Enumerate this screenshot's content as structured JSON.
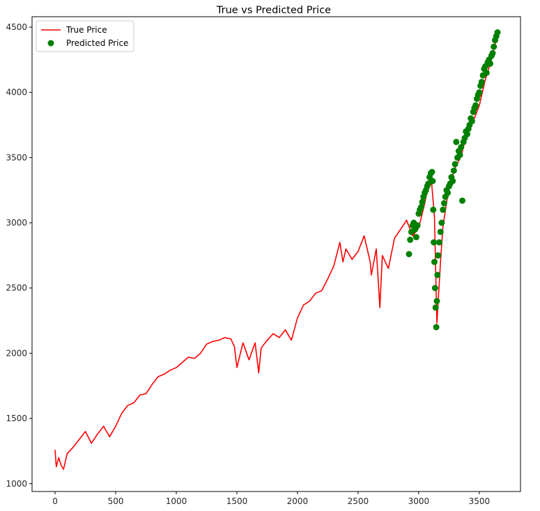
{
  "chart_data": {
    "type": "line",
    "title": "True vs Predicted Price",
    "xlabel": "",
    "ylabel": "",
    "xlim": [
      -190,
      3840
    ],
    "ylim": [
      940,
      4580
    ],
    "xticks": [
      0,
      500,
      1000,
      1500,
      2000,
      2500,
      3000,
      3500
    ],
    "yticks": [
      1000,
      1500,
      2000,
      2500,
      3000,
      3500,
      4000,
      4500
    ],
    "grid": false,
    "legend_position": "upper left",
    "series": [
      {
        "name": "True Price",
        "kind": "line",
        "color": "#ff0000",
        "x": [
          0,
          10,
          30,
          50,
          70,
          100,
          150,
          200,
          250,
          300,
          350,
          400,
          450,
          500,
          550,
          600,
          650,
          700,
          750,
          800,
          850,
          900,
          950,
          1000,
          1050,
          1100,
          1150,
          1200,
          1250,
          1300,
          1350,
          1400,
          1450,
          1480,
          1500,
          1550,
          1600,
          1650,
          1680,
          1700,
          1750,
          1800,
          1850,
          1900,
          1950,
          2000,
          2050,
          2100,
          2150,
          2200,
          2250,
          2300,
          2350,
          2375,
          2400,
          2450,
          2500,
          2550,
          2600,
          2610,
          2650,
          2680,
          2700,
          2750,
          2800,
          2850,
          2900,
          2950,
          3000,
          3050,
          3100,
          3130,
          3150,
          3180,
          3200,
          3250,
          3300,
          3350,
          3400,
          3450,
          3500,
          3550,
          3600,
          3650
        ],
        "y": [
          1260,
          1130,
          1200,
          1140,
          1110,
          1230,
          1280,
          1340,
          1400,
          1310,
          1380,
          1440,
          1360,
          1440,
          1540,
          1600,
          1620,
          1680,
          1690,
          1760,
          1820,
          1840,
          1870,
          1890,
          1930,
          1970,
          1960,
          2000,
          2070,
          2090,
          2100,
          2120,
          2110,
          2050,
          1890,
          2080,
          1950,
          2080,
          1850,
          2040,
          2100,
          2150,
          2120,
          2180,
          2100,
          2270,
          2370,
          2400,
          2460,
          2480,
          2570,
          2670,
          2850,
          2700,
          2800,
          2720,
          2780,
          2900,
          2700,
          2600,
          2800,
          2350,
          2750,
          2650,
          2880,
          2950,
          3020,
          2900,
          2960,
          3150,
          3380,
          3050,
          2230,
          2700,
          2970,
          3280,
          3420,
          3510,
          3700,
          3780,
          3900,
          4100,
          4250,
          4450
        ]
      },
      {
        "name": "Predicted Price",
        "kind": "scatter",
        "color": "#008000",
        "x": [
          2920,
          2930,
          2940,
          2950,
          2960,
          2970,
          2980,
          2990,
          3000,
          3010,
          3020,
          3030,
          3040,
          3050,
          3060,
          3070,
          3080,
          3090,
          3100,
          3110,
          3115,
          3120,
          3125,
          3130,
          3135,
          3140,
          3145,
          3150,
          3155,
          3160,
          3170,
          3180,
          3190,
          3200,
          3210,
          3220,
          3230,
          3240,
          3250,
          3260,
          3270,
          3280,
          3290,
          3300,
          3310,
          3320,
          3330,
          3340,
          3350,
          3360,
          3370,
          3380,
          3390,
          3400,
          3410,
          3420,
          3430,
          3440,
          3450,
          3460,
          3470,
          3480,
          3490,
          3500,
          3510,
          3520,
          3530,
          3540,
          3550,
          3560,
          3570,
          3580,
          3590,
          3600,
          3610,
          3620,
          3630,
          3640,
          3650
        ],
        "y": [
          2760,
          2870,
          2930,
          2980,
          3000,
          2950,
          2890,
          2980,
          3070,
          3100,
          3120,
          3160,
          3200,
          3230,
          3250,
          3280,
          3300,
          3350,
          3380,
          3390,
          3320,
          3100,
          2850,
          2700,
          2500,
          2350,
          2200,
          2400,
          2600,
          2750,
          2850,
          2930,
          3000,
          3100,
          3150,
          3200,
          3250,
          3230,
          3280,
          3300,
          3350,
          3320,
          3400,
          3450,
          3620,
          3500,
          3550,
          3520,
          3580,
          3170,
          3620,
          3650,
          3700,
          3680,
          3720,
          3750,
          3800,
          3780,
          3850,
          3880,
          3900,
          3950,
          3980,
          4000,
          4050,
          4080,
          4130,
          4180,
          4200,
          4150,
          4230,
          4250,
          4220,
          4280,
          4300,
          4350,
          4400,
          4430,
          4460
        ]
      }
    ]
  }
}
